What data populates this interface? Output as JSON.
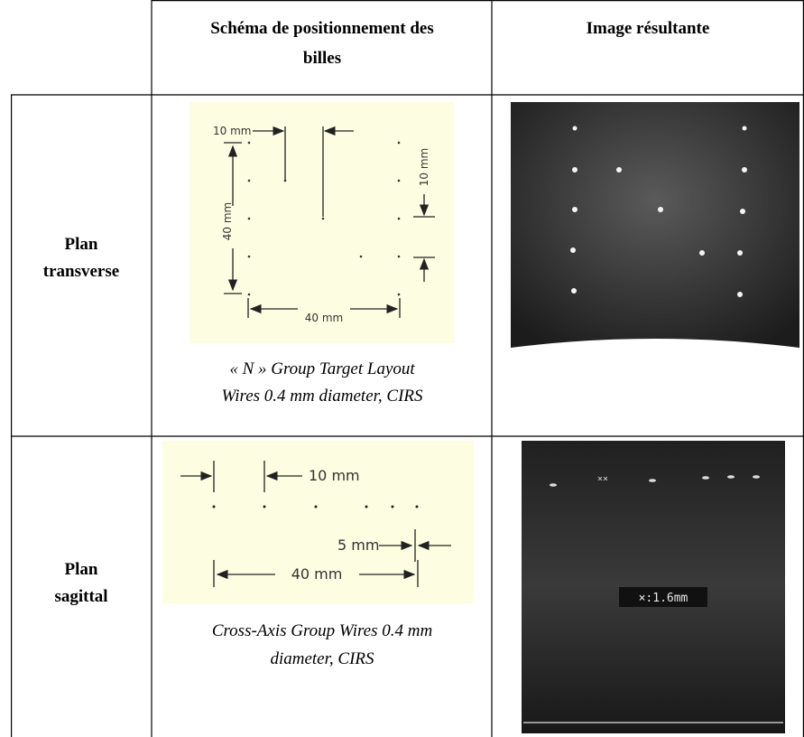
{
  "table": {
    "header": [
      {
        "lines": [
          "Schéma de positionnement des",
          "billes"
        ]
      },
      {
        "lines": [
          "Image résultante"
        ]
      }
    ],
    "rows": [
      {
        "label": [
          "Plan",
          "transverse"
        ],
        "diagram_labels": [
          "10 mm",
          "40 mm",
          "10 mm",
          "40 mm"
        ],
        "caption": [
          "« N » Group Target Layout",
          "Wires 0.4 mm diameter, CIRS"
        ]
      },
      {
        "label": [
          "Plan",
          "sagittal"
        ],
        "diagram_labels": [
          "10 mm",
          "5 mm",
          "40 mm"
        ],
        "caption": [
          "Cross-Axis Group Wires 0.4 mm",
          "diameter, CIRS"
        ],
        "image_annotation": "×:1.6mm"
      }
    ]
  }
}
